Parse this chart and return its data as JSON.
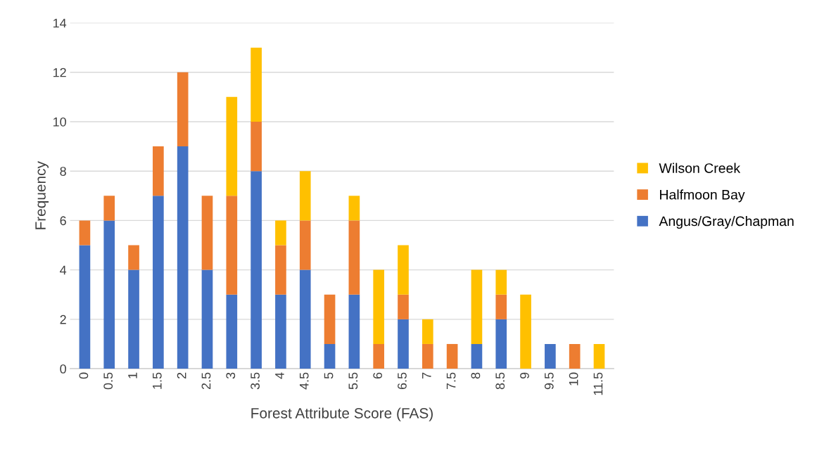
{
  "chart_data": {
    "type": "bar",
    "stacked": true,
    "xlabel": "Forest Attribute Score (FAS)",
    "ylabel": "Frequency",
    "categories": [
      "0",
      "0.5",
      "1",
      "1.5",
      "2",
      "2.5",
      "3",
      "3.5",
      "4",
      "4.5",
      "5",
      "5.5",
      "6",
      "6.5",
      "7",
      "7.5",
      "8",
      "8.5",
      "9",
      "9.5",
      "10",
      "11.5"
    ],
    "series": [
      {
        "name": "Angus/Gray/Chapman",
        "color": "#4472c4",
        "values": [
          5,
          6,
          4,
          7,
          9,
          4,
          3,
          8,
          3,
          4,
          1,
          3,
          0,
          2,
          0,
          0,
          1,
          2,
          0,
          1,
          0,
          0
        ]
      },
      {
        "name": "Halfmoon Bay",
        "color": "#ed7d31",
        "values": [
          1,
          1,
          1,
          2,
          3,
          3,
          4,
          2,
          2,
          2,
          2,
          3,
          1,
          1,
          1,
          1,
          0,
          1,
          0,
          0,
          1,
          0
        ]
      },
      {
        "name": "Wilson Creek",
        "color": "#ffc000",
        "values": [
          0,
          0,
          0,
          0,
          0,
          0,
          4,
          3,
          1,
          2,
          0,
          1,
          3,
          2,
          1,
          0,
          3,
          1,
          3,
          0,
          0,
          1
        ]
      }
    ],
    "ylim": [
      0,
      14
    ],
    "yticks": [
      0,
      2,
      4,
      6,
      8,
      10,
      12,
      14
    ],
    "grid": "y",
    "legend": "right"
  }
}
